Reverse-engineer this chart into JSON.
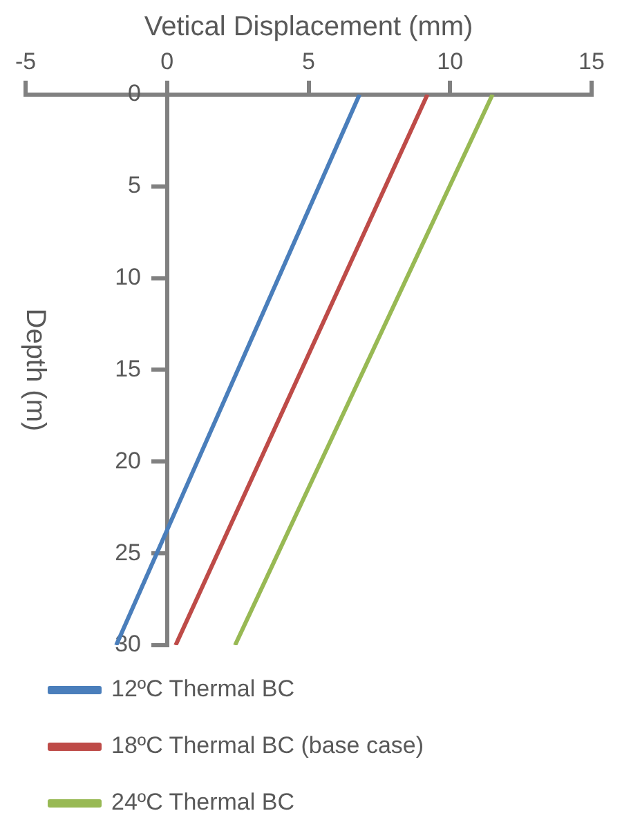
{
  "chart_data": {
    "type": "line",
    "xlabel": "Vetical Displacement (mm)",
    "ylabel": "Depth (m)",
    "xlim": [
      -5,
      15
    ],
    "xticks": [
      -5,
      0,
      5,
      10,
      15
    ],
    "ylim": [
      30,
      0
    ],
    "yticks": [
      0,
      5,
      10,
      15,
      20,
      25,
      30
    ],
    "grid": false,
    "legend": "bottom",
    "marker": "none",
    "line_style": "solid",
    "series": [
      {
        "name": "12ºC Thermal BC",
        "color": "#4a7ebb",
        "x": [
          6.8,
          -1.8
        ],
        "values": [
          0,
          30
        ]
      },
      {
        "name": "18ºC Thermal BC (base case)",
        "color": "#be4b48",
        "x": [
          9.2,
          0.3
        ],
        "values": [
          0,
          30
        ]
      },
      {
        "name": "24ºC Thermal BC",
        "color": "#98b954",
        "x": [
          11.5,
          2.4
        ],
        "values": [
          0,
          30
        ]
      }
    ]
  }
}
